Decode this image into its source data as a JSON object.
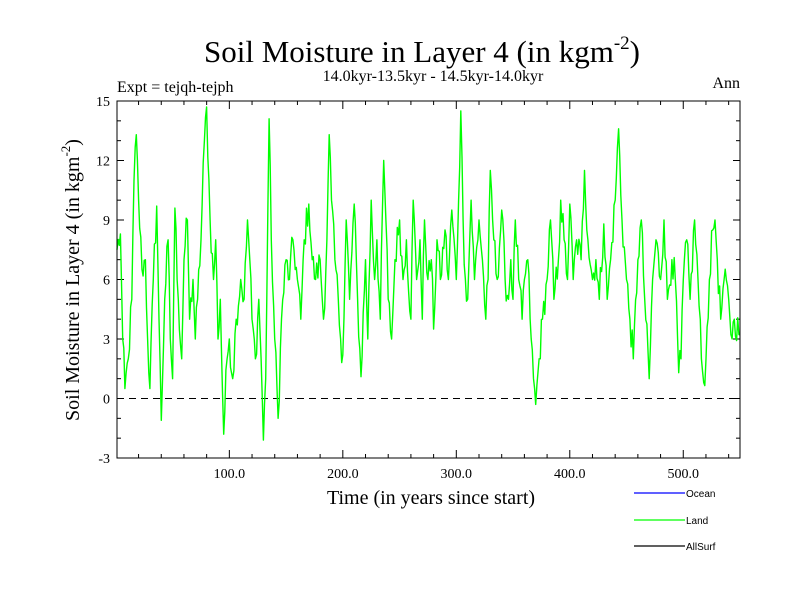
{
  "chart_data": {
    "type": "line",
    "title_main": "Soil Moisture in Layer 4 (in kgm",
    "title_sup": "-2",
    "title_close": ")",
    "subtitle": "14.0kyr-13.5kyr - 14.5kyr-14.0kyr",
    "left_label": "Expt = tejqh-tejph",
    "right_label": "Ann",
    "xlabel": "Time (in years since start)",
    "ylabel_main": "Soil Moisture in Layer 4 (in kgm",
    "ylabel_sup": "-2",
    "ylabel_close": ")",
    "xlim": [
      1,
      550
    ],
    "ylim": [
      -3,
      15
    ],
    "xticks": [
      100,
      200,
      300,
      400,
      500
    ],
    "xtick_labels": [
      "100.0",
      "200.0",
      "300.0",
      "400.0",
      "500.0"
    ],
    "yticks": [
      -3,
      0,
      3,
      6,
      9,
      12,
      15
    ],
    "ytick_labels": [
      "-3",
      "0",
      "3",
      "6",
      "9",
      "12",
      "15"
    ],
    "zero_line": 0,
    "legend": [
      {
        "name": "Ocean",
        "color": "#0000ff"
      },
      {
        "name": "Land",
        "color": "#00ff00"
      },
      {
        "name": "AllSurf",
        "color": "#000000"
      }
    ],
    "series": [
      {
        "name": "Land",
        "color": "#00ff00",
        "anchors": [
          [
            1,
            7.5
          ],
          [
            4,
            8.3
          ],
          [
            6,
            3
          ],
          [
            8,
            0.5
          ],
          [
            11,
            2
          ],
          [
            14,
            5
          ],
          [
            16,
            11
          ],
          [
            18,
            13.3
          ],
          [
            20,
            10
          ],
          [
            23,
            6.5
          ],
          [
            26,
            7
          ],
          [
            28,
            3
          ],
          [
            30,
            0.5
          ],
          [
            33,
            6
          ],
          [
            36,
            9.7
          ],
          [
            38,
            4
          ],
          [
            40,
            -1.1
          ],
          [
            43,
            5
          ],
          [
            46,
            8
          ],
          [
            48,
            3
          ],
          [
            50,
            1
          ],
          [
            52,
            9.6
          ],
          [
            55,
            5
          ],
          [
            58,
            2
          ],
          [
            60,
            7
          ],
          [
            63,
            9
          ],
          [
            65,
            4
          ],
          [
            68,
            6
          ],
          [
            70,
            3
          ],
          [
            72,
            5
          ],
          [
            75,
            8
          ],
          [
            78,
            13
          ],
          [
            80,
            14.7
          ],
          [
            83,
            9
          ],
          [
            86,
            6
          ],
          [
            88,
            8
          ],
          [
            90,
            3
          ],
          [
            92,
            5
          ],
          [
            95,
            -1.8
          ],
          [
            98,
            2
          ],
          [
            100,
            3
          ],
          [
            103,
            1
          ],
          [
            106,
            4
          ],
          [
            110,
            6
          ],
          [
            113,
            5
          ],
          [
            116,
            9
          ],
          [
            118,
            7
          ],
          [
            120,
            4
          ],
          [
            123,
            2
          ],
          [
            126,
            5
          ],
          [
            128,
            2
          ],
          [
            130,
            -2.1
          ],
          [
            132,
            1
          ],
          [
            135,
            14.1
          ],
          [
            137,
            8
          ],
          [
            140,
            3
          ],
          [
            143,
            -1.0
          ],
          [
            146,
            4
          ],
          [
            150,
            7
          ],
          [
            153,
            6
          ],
          [
            156,
            8
          ],
          [
            160,
            6
          ],
          [
            163,
            4
          ],
          [
            166,
            8
          ],
          [
            170,
            9.8
          ],
          [
            173,
            7
          ],
          [
            176,
            6
          ],
          [
            180,
            7
          ],
          [
            183,
            4
          ],
          [
            186,
            8
          ],
          [
            188,
            13.3
          ],
          [
            190,
            10
          ],
          [
            193,
            7
          ],
          [
            196,
            5
          ],
          [
            198,
            3
          ],
          [
            200,
            2.2
          ],
          [
            203,
            9
          ],
          [
            206,
            5
          ],
          [
            210,
            9.8
          ],
          [
            213,
            5
          ],
          [
            216,
            1.1
          ],
          [
            220,
            7
          ],
          [
            222,
            3
          ],
          [
            225,
            10
          ],
          [
            228,
            6
          ],
          [
            230,
            8
          ],
          [
            233,
            4
          ],
          [
            236,
            12
          ],
          [
            238,
            9
          ],
          [
            240,
            5
          ],
          [
            243,
            3
          ],
          [
            246,
            7
          ],
          [
            250,
            9
          ],
          [
            253,
            6
          ],
          [
            256,
            8
          ],
          [
            260,
            4
          ],
          [
            262,
            10
          ],
          [
            265,
            6
          ],
          [
            268,
            8
          ],
          [
            270,
            4
          ],
          [
            272,
            9
          ],
          [
            275,
            6
          ],
          [
            278,
            7
          ],
          [
            280,
            3.5
          ],
          [
            283,
            8
          ],
          [
            286,
            6
          ],
          [
            290,
            8.5
          ],
          [
            293,
            6
          ],
          [
            296,
            9.5
          ],
          [
            300,
            6
          ],
          [
            302,
            10
          ],
          [
            304,
            14.5
          ],
          [
            306,
            9
          ],
          [
            308,
            6
          ],
          [
            310,
            5
          ],
          [
            313,
            10
          ],
          [
            316,
            6
          ],
          [
            320,
            9
          ],
          [
            323,
            7
          ],
          [
            326,
            4
          ],
          [
            328,
            6
          ],
          [
            330,
            11.5
          ],
          [
            333,
            8
          ],
          [
            336,
            6
          ],
          [
            340,
            9.5
          ],
          [
            343,
            6
          ],
          [
            346,
            5
          ],
          [
            348,
            7
          ],
          [
            350,
            5
          ],
          [
            352,
            9
          ],
          [
            355,
            6
          ],
          [
            358,
            4
          ],
          [
            360,
            6
          ],
          [
            363,
            7
          ],
          [
            366,
            3
          ],
          [
            368,
            1
          ],
          [
            370,
            -0.3
          ],
          [
            373,
            2
          ],
          [
            376,
            4
          ],
          [
            380,
            6
          ],
          [
            383,
            9
          ],
          [
            386,
            5
          ],
          [
            390,
            7
          ],
          [
            392,
            10
          ],
          [
            395,
            8
          ],
          [
            398,
            6
          ],
          [
            400,
            9.8
          ],
          [
            403,
            6
          ],
          [
            406,
            8
          ],
          [
            410,
            7
          ],
          [
            413,
            11.5
          ],
          [
            416,
            8
          ],
          [
            420,
            6
          ],
          [
            423,
            7
          ],
          [
            426,
            5
          ],
          [
            430,
            8.8
          ],
          [
            433,
            5
          ],
          [
            436,
            7
          ],
          [
            440,
            10
          ],
          [
            443,
            13.6
          ],
          [
            446,
            9
          ],
          [
            450,
            6
          ],
          [
            453,
            4
          ],
          [
            456,
            2
          ],
          [
            460,
            7
          ],
          [
            463,
            9
          ],
          [
            466,
            5
          ],
          [
            470,
            1
          ],
          [
            473,
            6
          ],
          [
            476,
            8
          ],
          [
            480,
            6
          ],
          [
            483,
            9
          ],
          [
            486,
            5
          ],
          [
            490,
            7
          ],
          [
            493,
            6
          ],
          [
            496,
            1.3
          ],
          [
            498,
            2
          ],
          [
            500,
            6
          ],
          [
            503,
            8
          ],
          [
            506,
            5
          ],
          [
            510,
            9
          ],
          [
            513,
            6
          ],
          [
            516,
            2
          ],
          [
            518,
            0.8
          ],
          [
            520,
            2
          ],
          [
            523,
            6
          ],
          [
            526,
            8.5
          ],
          [
            528,
            9
          ],
          [
            530,
            7
          ],
          [
            533,
            4
          ],
          [
            536,
            6
          ],
          [
            540,
            5
          ],
          [
            543,
            3
          ],
          [
            545,
            4
          ],
          [
            550,
            3.2
          ]
        ]
      }
    ]
  }
}
